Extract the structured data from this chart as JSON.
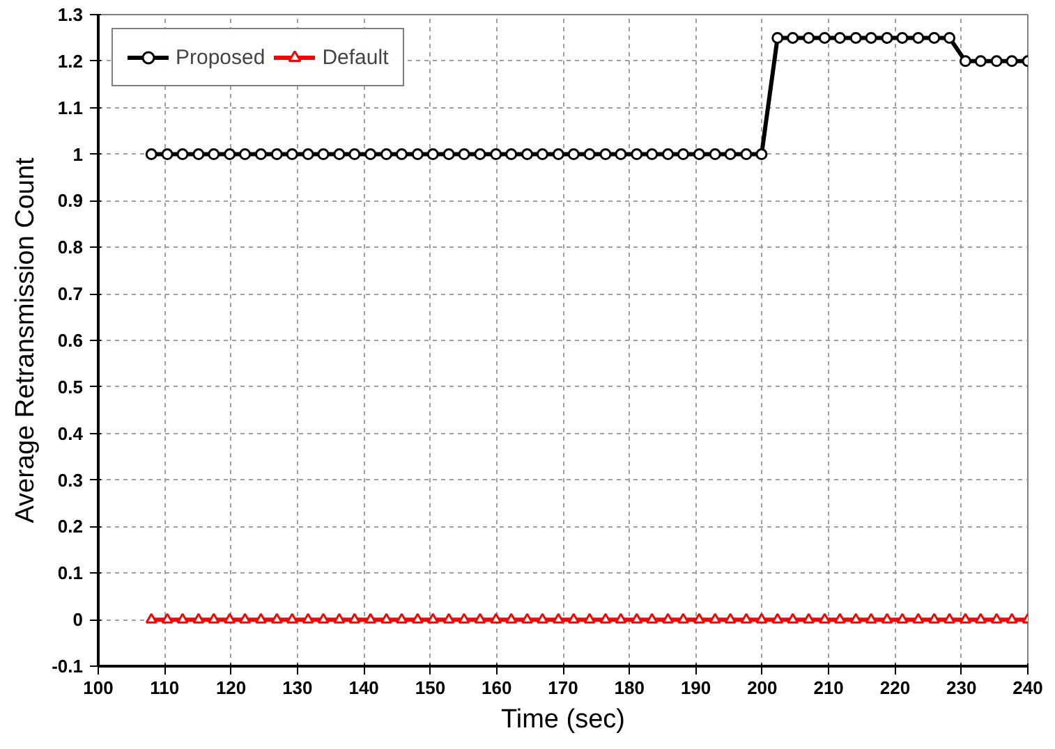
{
  "chart_data": {
    "type": "line",
    "xlabel": "Time (sec)",
    "ylabel": "Average Retransmission Count",
    "x": [
      108.0,
      110.4,
      112.7,
      115.1,
      117.4,
      119.8,
      122.1,
      124.5,
      126.9,
      129.2,
      131.6,
      133.9,
      136.3,
      138.6,
      141.0,
      143.4,
      145.7,
      148.1,
      150.4,
      152.8,
      155.1,
      157.5,
      159.9,
      162.2,
      164.6,
      166.9,
      169.3,
      171.6,
      174.0,
      176.4,
      178.7,
      181.1,
      183.4,
      185.8,
      188.1,
      190.5,
      192.9,
      195.2,
      197.6,
      199.9,
      202.3,
      204.6,
      207.0,
      209.4,
      211.7,
      214.1,
      216.4,
      218.8,
      221.1,
      223.5,
      225.9,
      228.2,
      230.6,
      232.9,
      235.3,
      237.6,
      240.0
    ],
    "series": [
      {
        "name": "Proposed",
        "color": "#000000",
        "marker": "circle",
        "values": [
          1,
          1,
          1,
          1,
          1,
          1,
          1,
          1,
          1,
          1,
          1,
          1,
          1,
          1,
          1,
          1,
          1,
          1,
          1,
          1,
          1,
          1,
          1,
          1,
          1,
          1,
          1,
          1,
          1,
          1,
          1,
          1,
          1,
          1,
          1,
          1,
          1,
          1,
          1,
          1,
          1.25,
          1.25,
          1.25,
          1.25,
          1.25,
          1.25,
          1.25,
          1.25,
          1.25,
          1.25,
          1.25,
          1.25,
          1.2,
          1.2,
          1.2,
          1.2,
          1.2
        ]
      },
      {
        "name": "Default",
        "color": "#ff0000",
        "marker": "triangle",
        "values": [
          0,
          0,
          0,
          0,
          0,
          0,
          0,
          0,
          0,
          0,
          0,
          0,
          0,
          0,
          0,
          0,
          0,
          0,
          0,
          0,
          0,
          0,
          0,
          0,
          0,
          0,
          0,
          0,
          0,
          0,
          0,
          0,
          0,
          0,
          0,
          0,
          0,
          0,
          0,
          0,
          0,
          0,
          0,
          0,
          0,
          0,
          0,
          0,
          0,
          0,
          0,
          0,
          0,
          0,
          0,
          0,
          0
        ]
      }
    ],
    "xlim": [
      100,
      240
    ],
    "xticks": [
      100,
      110,
      120,
      130,
      140,
      150,
      160,
      170,
      180,
      190,
      200,
      210,
      220,
      230,
      240
    ],
    "ylim": [
      -0.1,
      1.3
    ],
    "yticks": [
      -0.1,
      0,
      0.1,
      0.2,
      0.3,
      0.4,
      0.5,
      0.6,
      0.7,
      0.8,
      0.9,
      1,
      1.1,
      1.2,
      1.3
    ],
    "grid": true,
    "legend": "top left",
    "line_style": "solid"
  }
}
